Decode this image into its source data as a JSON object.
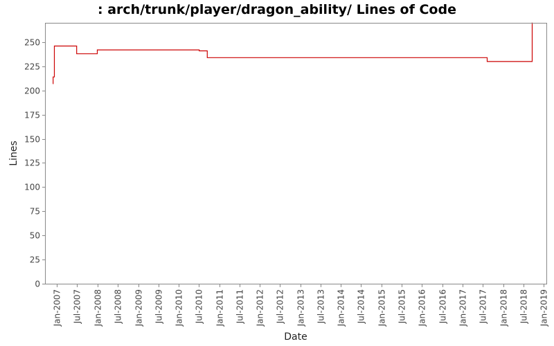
{
  "chart_data": {
    "type": "line",
    "title": ": arch/trunk/player/dragon_ability/ Lines of Code",
    "xlabel": "Date",
    "ylabel": "Lines",
    "ylim": [
      0,
      270
    ],
    "xlim": [
      "2006-09-15",
      "2019-01-25"
    ],
    "y_ticks": [
      0,
      25,
      50,
      75,
      100,
      125,
      150,
      175,
      200,
      225,
      250
    ],
    "x_ticks": [
      {
        "date": "2007-01-01",
        "label": "Jan-2007"
      },
      {
        "date": "2007-07-01",
        "label": "Jul-2007"
      },
      {
        "date": "2008-01-01",
        "label": "Jan-2008"
      },
      {
        "date": "2008-07-01",
        "label": "Jul-2008"
      },
      {
        "date": "2009-01-01",
        "label": "Jan-2009"
      },
      {
        "date": "2009-07-01",
        "label": "Jul-2009"
      },
      {
        "date": "2010-01-01",
        "label": "Jan-2010"
      },
      {
        "date": "2010-07-01",
        "label": "Jul-2010"
      },
      {
        "date": "2011-01-01",
        "label": "Jan-2011"
      },
      {
        "date": "2011-07-01",
        "label": "Jul-2011"
      },
      {
        "date": "2012-01-01",
        "label": "Jan-2012"
      },
      {
        "date": "2012-07-01",
        "label": "Jul-2012"
      },
      {
        "date": "2013-01-01",
        "label": "Jan-2013"
      },
      {
        "date": "2013-07-01",
        "label": "Jul-2013"
      },
      {
        "date": "2014-01-01",
        "label": "Jan-2014"
      },
      {
        "date": "2014-07-01",
        "label": "Jul-2014"
      },
      {
        "date": "2015-01-01",
        "label": "Jan-2015"
      },
      {
        "date": "2015-07-01",
        "label": "Jul-2015"
      },
      {
        "date": "2016-01-01",
        "label": "Jan-2016"
      },
      {
        "date": "2016-07-01",
        "label": "Jul-2016"
      },
      {
        "date": "2017-01-01",
        "label": "Jan-2017"
      },
      {
        "date": "2017-07-01",
        "label": "Jul-2017"
      },
      {
        "date": "2018-01-01",
        "label": "Jan-2018"
      },
      {
        "date": "2018-07-01",
        "label": "Jul-2018"
      },
      {
        "date": "2019-01-01",
        "label": "Jan-2019"
      }
    ],
    "grid": false,
    "legend": "none",
    "line_color": "#cc0000",
    "series": [
      {
        "step": true,
        "points": [
          {
            "x": "2006-11-25",
            "y": 207
          },
          {
            "x": "2006-11-27",
            "y": 214
          },
          {
            "x": "2006-12-08",
            "y": 246
          },
          {
            "x": "2007-06-27",
            "y": 238
          },
          {
            "x": "2007-12-30",
            "y": 242
          },
          {
            "x": "2010-07-05",
            "y": 241
          },
          {
            "x": "2010-09-15",
            "y": 234
          },
          {
            "x": "2017-08-10",
            "y": 230
          },
          {
            "x": "2018-09-18",
            "y": 230
          },
          {
            "x": "2018-09-19",
            "y": 270
          },
          {
            "x": "2018-09-20",
            "y": 270
          }
        ]
      }
    ]
  }
}
